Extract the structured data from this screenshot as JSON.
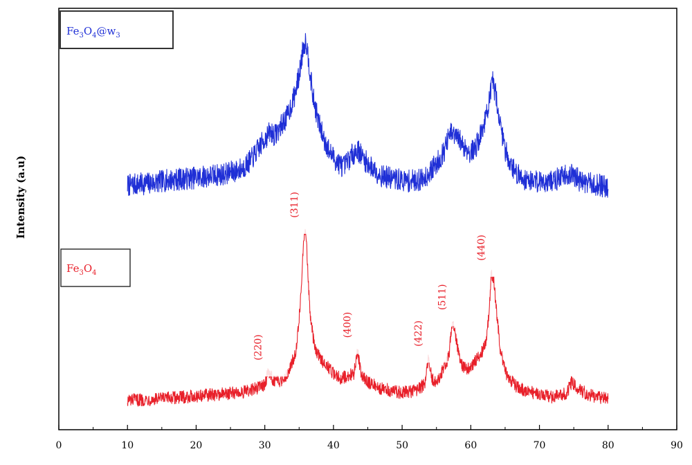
{
  "chart_data": {
    "type": "line",
    "title": "",
    "xlabel": "",
    "ylabel": "Intensity (a.u)",
    "xlim": [
      0,
      90
    ],
    "xticks": [
      0,
      10,
      20,
      30,
      40,
      50,
      60,
      70,
      80,
      90
    ],
    "yticks_visible": false,
    "grid": false,
    "series": [
      {
        "name": "Fe3O4@w3",
        "color": "#1f2fd6",
        "legend": {
          "base": "Fe",
          "sub1": "3",
          "mid": "O",
          "sub2": "4",
          "tail": "@w",
          "sub3": "3"
        },
        "x": [
          10,
          12,
          14,
          16,
          18,
          20,
          22,
          24,
          26,
          27,
          28,
          29,
          30,
          30.8,
          31.5,
          32.3,
          33.3,
          34.3,
          35.0,
          35.6,
          36.0,
          36.4,
          37.0,
          37.8,
          38.6,
          39.5,
          40.5,
          41.5,
          42.5,
          43.5,
          44.5,
          45.5,
          47,
          49,
          51,
          53,
          54,
          55,
          56,
          57,
          57.6,
          58.4,
          59.2,
          60,
          60.8,
          61.6,
          62.2,
          62.7,
          63.2,
          63.7,
          64.3,
          65,
          66,
          67,
          68,
          70,
          72,
          73,
          74,
          75,
          76,
          78,
          80
        ],
        "y": [
          0.8,
          1.2,
          1.6,
          2.3,
          2.6,
          3.0,
          3.5,
          4.0,
          5.0,
          6.0,
          8.0,
          11.0,
          14.0,
          16.0,
          15.0,
          17.5,
          20.5,
          26.0,
          32.0,
          40.0,
          42.0,
          36.0,
          26.0,
          19.0,
          14.0,
          10.0,
          7.5,
          6.0,
          9.0,
          11.0,
          8.0,
          6.0,
          3.5,
          2.5,
          2.0,
          2.5,
          4.5,
          7.0,
          10.0,
          15.5,
          15.0,
          13.5,
          11.5,
          10.0,
          12.0,
          16.0,
          20.0,
          25.0,
          30.0,
          26.0,
          18.0,
          11.0,
          6.0,
          3.5,
          2.5,
          2.0,
          2.0,
          3.0,
          4.0,
          3.5,
          2.0,
          1.0,
          0.5
        ]
      },
      {
        "name": "Fe3O4",
        "color": "#e8202a",
        "legend": {
          "base": "Fe",
          "sub1": "3",
          "mid": "O",
          "sub2": "4"
        },
        "x": [
          10,
          14,
          18,
          22,
          26,
          28,
          29,
          30,
          30.5,
          31.0,
          31.6,
          32.5,
          33.5,
          34.5,
          35.0,
          35.5,
          35.8,
          36.0,
          36.2,
          36.6,
          37.2,
          38.0,
          39,
          40,
          41,
          42,
          43.0,
          43.5,
          44.0,
          45,
          47,
          50,
          52,
          53.3,
          53.8,
          54.3,
          55,
          56,
          56.8,
          57.3,
          57.8,
          58.5,
          59.5,
          60.5,
          61.5,
          62.2,
          62.7,
          63.0,
          63.3,
          63.7,
          64.3,
          65,
          66,
          67,
          68,
          70,
          72,
          74,
          74.7,
          75.3,
          76,
          78,
          80
        ],
        "y": [
          0.5,
          1.0,
          2.0,
          3.0,
          4.0,
          5.0,
          6.5,
          8.0,
          13.5,
          11.0,
          9.0,
          10.0,
          14.0,
          23.0,
          38.0,
          65.0,
          80.0,
          78.0,
          65.0,
          40.0,
          26.0,
          20.0,
          17.0,
          13.0,
          11.0,
          11.5,
          13.0,
          24.0,
          13.0,
          9.0,
          6.0,
          4.0,
          5.0,
          8.0,
          20.0,
          11.0,
          8.0,
          15.0,
          21.0,
          37.0,
          30.0,
          17.0,
          15.0,
          18.0,
          22.0,
          28.0,
          42.0,
          60.0,
          58.0,
          44.0,
          24.0,
          14.0,
          9.0,
          6.0,
          5.0,
          3.0,
          2.0,
          4.0,
          9.0,
          7.0,
          5.0,
          2.0,
          1.0
        ]
      }
    ],
    "peak_labels": [
      {
        "text": "(220)",
        "x": 30.5
      },
      {
        "text": "(311)",
        "x": 35.8
      },
      {
        "text": "(400)",
        "x": 43.5
      },
      {
        "text": "(422)",
        "x": 53.8
      },
      {
        "text": "(511)",
        "x": 57.3
      },
      {
        "text": "(440)",
        "x": 63.0
      }
    ]
  }
}
